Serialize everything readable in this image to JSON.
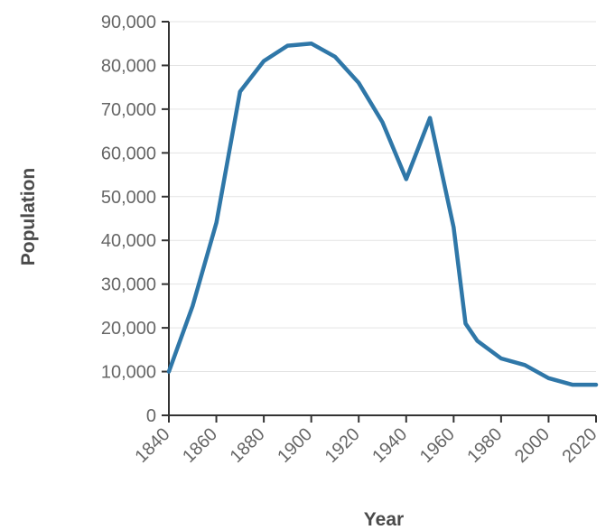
{
  "chart_data": {
    "type": "line",
    "xlabel": "Year",
    "ylabel": "Population",
    "xlim": [
      1840,
      2020
    ],
    "ylim": [
      0,
      90000
    ],
    "grid": true,
    "x_ticks": [
      "1840",
      "1860",
      "1880",
      "1900",
      "1920",
      "1940",
      "1960",
      "1980",
      "2000",
      "2020"
    ],
    "y_ticks": [
      "0",
      "10,000",
      "20,000",
      "30,000",
      "40,000",
      "50,000",
      "60,000",
      "70,000",
      "80,000",
      "90,000"
    ],
    "series": [
      {
        "color": "#2f77a8",
        "points": [
          [
            1840,
            10000
          ],
          [
            1850,
            25000
          ],
          [
            1860,
            44000
          ],
          [
            1870,
            74000
          ],
          [
            1880,
            81000
          ],
          [
            1890,
            84500
          ],
          [
            1900,
            85000
          ],
          [
            1910,
            82000
          ],
          [
            1920,
            76000
          ],
          [
            1930,
            67000
          ],
          [
            1940,
            54000
          ],
          [
            1950,
            68000
          ],
          [
            1960,
            43000
          ],
          [
            1965,
            21000
          ],
          [
            1970,
            17000
          ],
          [
            1980,
            13000
          ],
          [
            1990,
            11500
          ],
          [
            2000,
            8500
          ],
          [
            2010,
            7000
          ],
          [
            2020,
            7000
          ]
        ]
      }
    ]
  }
}
